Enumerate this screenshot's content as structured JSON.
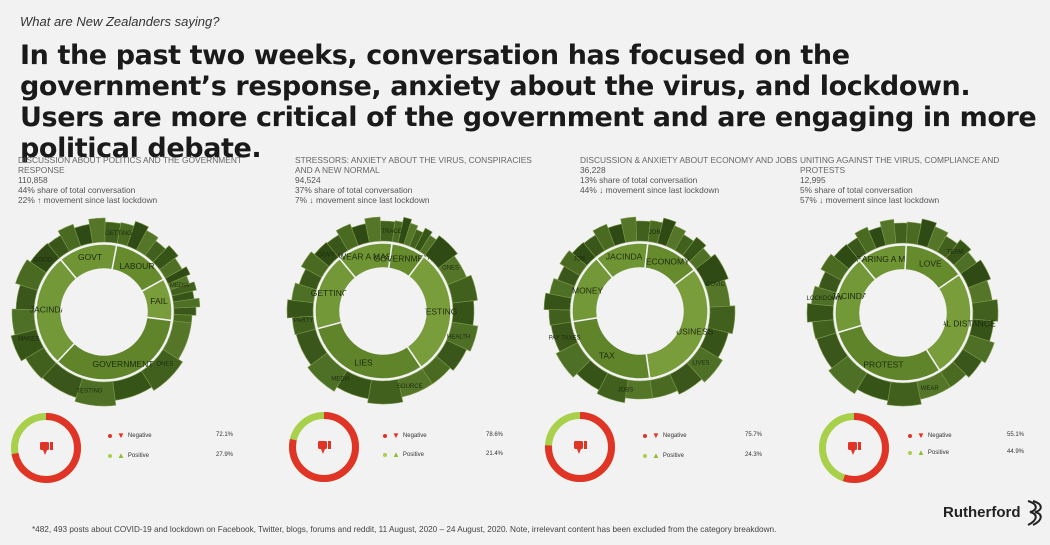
{
  "header": {
    "subtitle": "What are New Zealanders saying?",
    "headline": "In the past two weeks, conversation has focused on the government’s response, anxiety about the virus, and lockdown. Users are more critical of the government and are engaging in more political debate."
  },
  "colors": {
    "background": "#f2f2f2",
    "negative": "#e03426",
    "positive": "#a8d04a",
    "ring_inner": "#6b8f2f",
    "ring_outer": "#3e5a1c"
  },
  "legend_labels": {
    "negative": "Negative",
    "positive": "Positive"
  },
  "icons": {
    "negative": "thumbs-down-icon",
    "positive": "thumbs-up-icon"
  },
  "chart_data": [
    {
      "type": "pie",
      "subtype": "sunburst",
      "title": "DISCUSSION ABOUT POLITICS AND THE GOVERNMENT RESPONSE",
      "count": "110,858",
      "share_text": "44% share of total conversation",
      "movement_text": "22% ↑ movement since last lockdown",
      "inner": [
        {
          "label": "GOVT",
          "value": 1.4
        },
        {
          "label": "LABOUR",
          "value": 1.4
        },
        {
          "label": "FAIL",
          "value": 1.0
        },
        {
          "label": "GOVERNMENT",
          "value": 3.5
        },
        {
          "label": "JACINDA",
          "value": 2.7
        }
      ],
      "outer_labels": [
        "GETTING",
        "MEDIA",
        "ONES",
        "TESTING",
        "MAKES",
        "GOOD"
      ],
      "sentiment": {
        "negative_label": "72.1%",
        "negative": 72.1,
        "positive_label": "27.9%",
        "positive": 27.9
      }
    },
    {
      "type": "pie",
      "subtype": "sunburst",
      "title": "STRESSORS: ANXIETY ABOUT THE VIRUS, CONSPIRACIES AND A NEW NORMAL",
      "count": "94,524",
      "share_text": "37% share of total conversation",
      "movement_text": " 7% ↓ movement since last lockdown",
      "inner": [
        {
          "label": "WEAR A MASK",
          "value": 1.3
        },
        {
          "label": "GOVERNMENT",
          "value": 0.8
        },
        {
          "label": "TESTING",
          "value": 3.0
        },
        {
          "label": "LIES",
          "value": 3.0
        },
        {
          "label": "GETTING",
          "value": 1.8
        }
      ],
      "outer_labels": [
        "TRACE",
        "ONES",
        "HEALTH",
        "SOURCE",
        "MEDIA",
        "PARTY",
        "GOVT"
      ],
      "sentiment": {
        "negative_label": "78.6%",
        "negative": 78.6,
        "positive_label": "21.4%",
        "positive": 21.4
      }
    },
    {
      "type": "pie",
      "subtype": "sunburst",
      "title": "DISCUSSION & ANXIETY ABOUT ECONOMY AND JOBS",
      "count": "36,228",
      "share_text": "13% share of total conversation",
      "movement_text": "44% ↓ movement since last lockdown",
      "inner": [
        {
          "label": "JACINDA",
          "value": 1.4
        },
        {
          "label": "ECONOMY",
          "value": 1.4
        },
        {
          "label": "BUSINESS",
          "value": 3.6
        },
        {
          "label": "TAX",
          "value": 2.7
        },
        {
          "label": "MONEY",
          "value": 1.8
        }
      ],
      "outer_labels": [
        "JOB",
        "COVID",
        "LIVES",
        "JOBS",
        "PAY TAXES",
        "JOB"
      ],
      "sentiment": {
        "negative_label": "75.7%",
        "negative": 75.7,
        "positive_label": "24.3%",
        "positive": 24.3
      }
    },
    {
      "type": "pie",
      "subtype": "sunburst",
      "title": "UNITING AGAINST THE VIRUS, COMPLIANCE AND PROTESTS",
      "count": "12,995",
      "share_text": "5% share of total conversation",
      "movement_text": "57% ↓ movement since last lockdown",
      "inner": [
        {
          "label": "WEARING A MASK",
          "value": 1.2
        },
        {
          "label": "LOVE",
          "value": 1.5
        },
        {
          "label": "SOCIAL DISTANCE",
          "value": 2.6
        },
        {
          "label": "PROTEST",
          "value": 3.0
        },
        {
          "label": "JACINDA",
          "value": 1.9
        }
      ],
      "outer_labels": [
        "TEAM",
        "WEAR",
        "LOCKDOWN"
      ],
      "sentiment": {
        "negative_label": "55.1%",
        "negative": 55.1,
        "positive_label": "44.9%",
        "positive": 44.9
      }
    }
  ],
  "footnote": "*482, 493 posts about COVID-19 and lockdown on Facebook, Twitter, blogs, forums and reddit, 11 August, 2020 – 24 August, 2020. Note, irrelevant content has been excluded from the category breakdown.",
  "brand": {
    "name": "Rutherford"
  }
}
